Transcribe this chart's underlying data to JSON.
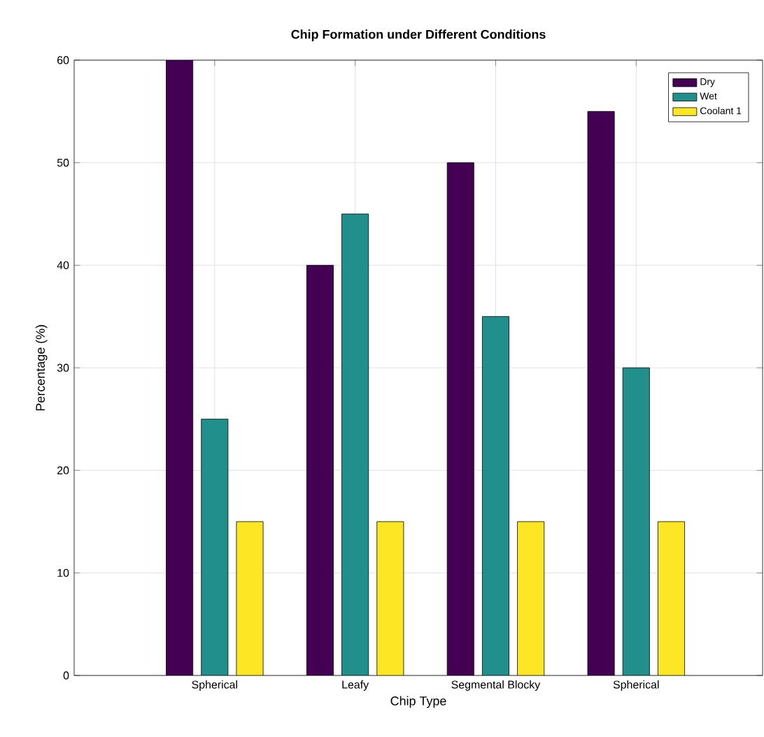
{
  "chart_data": {
    "type": "bar",
    "title": "Chip Formation under Different Conditions",
    "xlabel": "Chip Type",
    "ylabel": "Percentage (%)",
    "categories": [
      "Spherical",
      "Leafy",
      "Segmental Blocky",
      "Spherical"
    ],
    "series": [
      {
        "name": "Dry",
        "color": "#440154",
        "values": [
          60,
          40,
          50,
          55
        ]
      },
      {
        "name": "Wet",
        "color": "#21908c",
        "values": [
          25,
          45,
          35,
          30
        ]
      },
      {
        "name": "Coolant 1",
        "color": "#fde725",
        "values": [
          15,
          15,
          15,
          15
        ]
      }
    ],
    "ylim": [
      0,
      60
    ],
    "yticks": [
      0,
      10,
      20,
      30,
      40,
      50,
      60
    ],
    "grid": true,
    "legend": "top right"
  }
}
